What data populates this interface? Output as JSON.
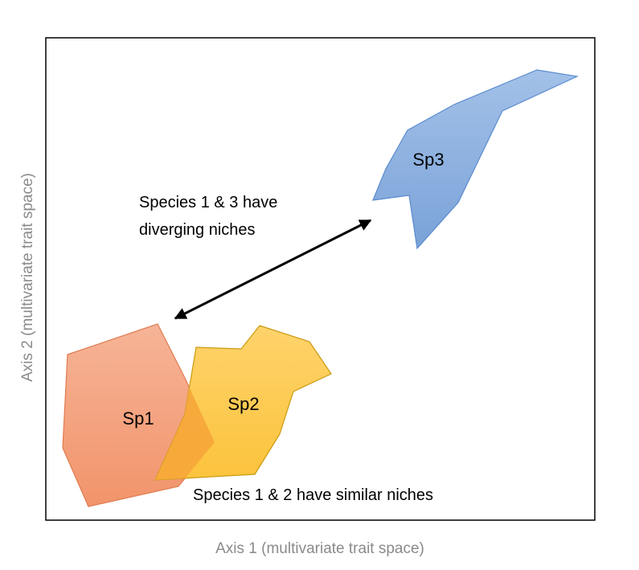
{
  "axes": {
    "x_label": "Axis 1 (multivariate trait space)",
    "y_label": "Axis 2 (multivariate trait space)"
  },
  "species": [
    {
      "id": "sp1",
      "label": "Sp1",
      "fill": "#f4a27f",
      "stroke": "#e07b50"
    },
    {
      "id": "sp2",
      "label": "Sp2",
      "fill": "#fdc94f",
      "stroke": "#c99a10"
    },
    {
      "id": "sp3",
      "label": "Sp3",
      "fill": "#86acdc",
      "stroke": "#5b8ccf"
    }
  ],
  "overlap": {
    "fill": "#f7a83a"
  },
  "annotations": {
    "diverging_line1": "Species 1 & 3 have",
    "diverging_line2": "diverging niches",
    "similar": "Species 1 & 2 have similar niches"
  },
  "colors": {
    "frame": "#000000",
    "axis_text": "#8a8a8a",
    "arrow": "#000000"
  }
}
